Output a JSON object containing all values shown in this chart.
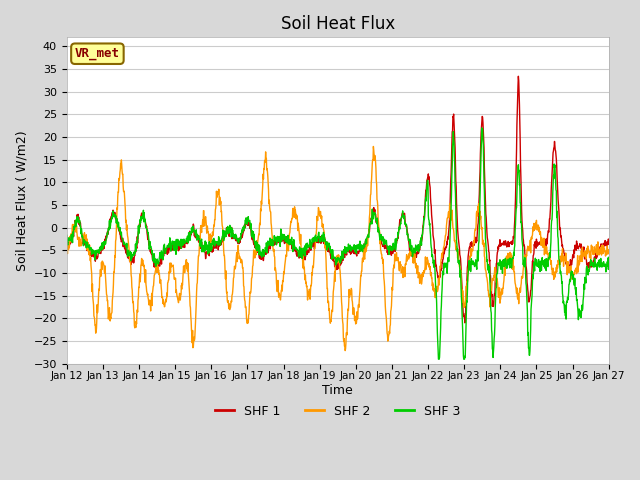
{
  "title": "Soil Heat Flux",
  "xlabel": "Time",
  "ylabel": "Soil Heat Flux ( W/m2)",
  "ylim": [
    -30,
    42
  ],
  "yticks": [
    -30,
    -25,
    -20,
    -15,
    -10,
    -5,
    0,
    5,
    10,
    15,
    20,
    25,
    30,
    35,
    40
  ],
  "colors": {
    "SHF 1": "#cc0000",
    "SHF 2": "#ff9900",
    "SHF 3": "#00cc00"
  },
  "fig_bg_color": "#d8d8d8",
  "plot_bg": "#ffffff",
  "grid_color": "#cccccc",
  "annotation_text": "VR_met",
  "annotation_bg": "#ffff99",
  "annotation_border": "#886600",
  "xtick_labels": [
    "Jan 12",
    "Jan 13",
    "Jan 14",
    "Jan 15",
    "Jan 16",
    "Jan 17",
    "Jan 18",
    "Jan 19",
    "Jan 20",
    "Jan 21",
    "Jan 22",
    "Jan 23",
    "Jan 24",
    "Jan 25",
    "Jan 26",
    "Jan 27"
  ]
}
